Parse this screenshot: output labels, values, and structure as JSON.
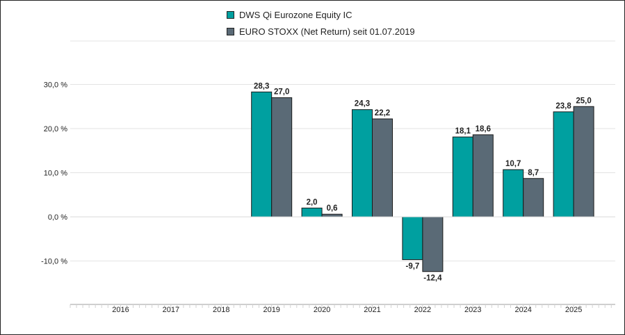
{
  "chart_data": {
    "type": "bar",
    "title": "",
    "xlabel": "",
    "ylabel": "",
    "categories": [
      "2016",
      "2017",
      "2018",
      "2019",
      "2020",
      "2021",
      "2022",
      "2023",
      "2024",
      "2025"
    ],
    "series": [
      {
        "name": "DWS Qi Eurozone Equity IC",
        "color": "#00a0a0",
        "values": [
          null,
          null,
          null,
          28.3,
          2.0,
          24.3,
          -9.7,
          18.1,
          10.7,
          23.8
        ],
        "labels": [
          "",
          "",
          "",
          "28,3",
          "2,0",
          "24,3",
          "-9,7",
          "18,1",
          "10,7",
          "23,8"
        ]
      },
      {
        "name": "EURO STOXX (Net Return) seit 01.07.2019",
        "color": "#5a6a76",
        "values": [
          null,
          null,
          null,
          27.0,
          0.6,
          22.2,
          -12.4,
          18.6,
          8.7,
          25.0
        ],
        "labels": [
          "",
          "",
          "",
          "27,0",
          "0,6",
          "22,2",
          "-12,4",
          "18,6",
          "8,7",
          "25,0"
        ]
      }
    ],
    "yticks": [
      30,
      20,
      10,
      0,
      -10
    ],
    "ytick_labels": [
      "30,0 %",
      "20,0 %",
      "10,0 %",
      "0,0 %",
      "-10,0 %"
    ],
    "ylim": [
      -20,
      40
    ],
    "grid": true,
    "legend_position": "top-center"
  }
}
